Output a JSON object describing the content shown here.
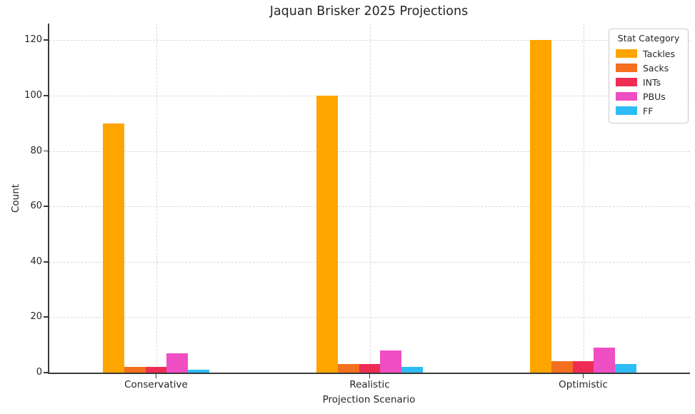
{
  "chart_data": {
    "type": "bar",
    "title": "Jaquan Brisker 2025 Projections",
    "xlabel": "Projection Scenario",
    "ylabel": "Count",
    "categories": [
      "Conservative",
      "Realistic",
      "Optimistic"
    ],
    "series": [
      {
        "name": "Tackles",
        "color": "#FFA500",
        "values": [
          90,
          100,
          120
        ]
      },
      {
        "name": "Sacks",
        "color": "#F3701E",
        "values": [
          2,
          3,
          4
        ]
      },
      {
        "name": "INTs",
        "color": "#EE2C54",
        "values": [
          2,
          3,
          4
        ]
      },
      {
        "name": "PBUs",
        "color": "#F04EC3",
        "values": [
          7,
          8,
          9
        ]
      },
      {
        "name": "FF",
        "color": "#2EBCF5",
        "values": [
          1,
          2,
          3
        ]
      }
    ],
    "legend": {
      "title": "Stat Category",
      "position": "upper right"
    },
    "yticks": [
      0,
      20,
      40,
      60,
      80,
      100,
      120
    ],
    "ylim": [
      0,
      126
    ],
    "grid": true,
    "group_width_fraction": 0.5,
    "colors": {
      "spine": "#3a3a3a",
      "grid": "#d8d8d8",
      "text": "#262626"
    }
  }
}
